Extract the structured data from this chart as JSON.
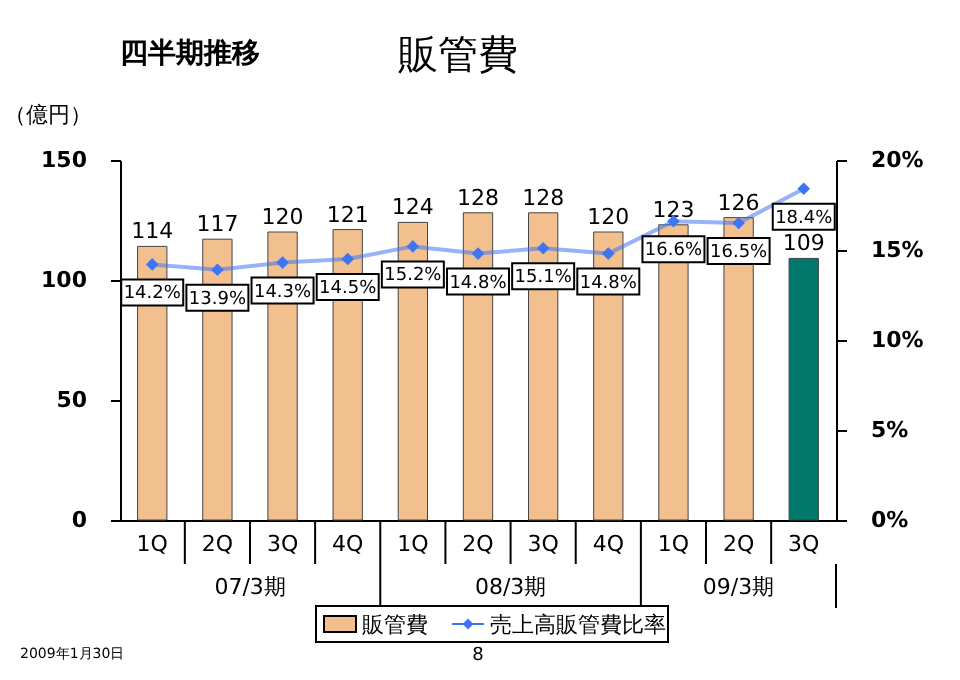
{
  "chart_data": {
    "type": "bar",
    "title": "販管費",
    "ylabel": "（億円）",
    "categories": [
      "1Q",
      "2Q",
      "3Q",
      "4Q",
      "1Q",
      "2Q",
      "3Q",
      "4Q",
      "1Q",
      "2Q",
      "3Q"
    ],
    "series": [
      {
        "name": "販管費",
        "color": "#f2c08e",
        "colors": [
          "#f2c08e",
          "#f2c08e",
          "#f2c08e",
          "#f2c08e",
          "#f2c08e",
          "#f2c08e",
          "#f2c08e",
          "#f2c08e",
          "#f2c08e",
          "#f2c08e",
          "#00786c"
        ],
        "values": [
          114,
          117,
          120,
          121,
          124,
          128,
          128,
          120,
          123,
          126,
          109
        ],
        "data_labels": true
      },
      {
        "name": "売上高販管費比率",
        "type": "line",
        "axis": "y2",
        "color": "#3f74f2",
        "marker": "diamond",
        "values": [
          14.2,
          13.9,
          14.3,
          14.5,
          15.2,
          14.8,
          15.1,
          14.8,
          16.6,
          16.5,
          18.4
        ],
        "value_labels": [
          "14.2%",
          "13.9%",
          "14.3%",
          "14.5%",
          "15.2%",
          "14.8%",
          "15.1%",
          "14.8%",
          "16.6%",
          "16.5%",
          "18.4%"
        ]
      }
    ],
    "ylim": [
      0,
      150
    ],
    "yticks": [
      0,
      50,
      100,
      150
    ],
    "y2lim": [
      0,
      20
    ],
    "y2ticks": [
      {
        "value": 0,
        "label": "0%"
      },
      {
        "value": 5,
        "label": "5%"
      },
      {
        "value": 10,
        "label": "10%"
      },
      {
        "value": 15,
        "label": "15%"
      },
      {
        "value": 20,
        "label": "20%"
      }
    ],
    "grid": false,
    "legend": "bottom",
    "annotations": [
      "四半期推移",
      "07/3期",
      "08/3期",
      "09/3期",
      "2009年1月30日",
      "8"
    ]
  }
}
